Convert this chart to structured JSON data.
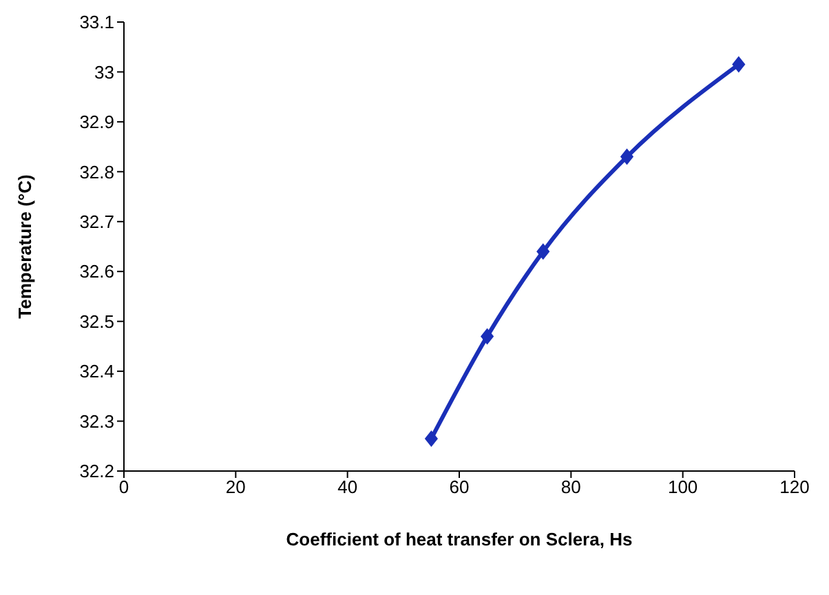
{
  "chart_data": {
    "type": "line",
    "xlabel": "Coefficient of heat transfer on Sclera, Hs",
    "ylabel": "Temperature (°C)",
    "x": [
      55,
      65,
      75,
      90,
      110
    ],
    "series": [
      {
        "color": "#1a2fb8",
        "values": [
          32.265,
          32.47,
          32.64,
          32.83,
          33.015
        ]
      }
    ],
    "xlim": [
      0,
      120
    ],
    "xticks": [
      0,
      20,
      40,
      60,
      80,
      100,
      120
    ],
    "ylim": [
      32.2,
      33.1
    ],
    "yticks": [
      32.2,
      32.3,
      32.4,
      32.5,
      32.6,
      32.7,
      32.8,
      32.9,
      33,
      33.1
    ],
    "grid": false,
    "legend": false,
    "marker": "diamond",
    "line_style": "solid"
  }
}
